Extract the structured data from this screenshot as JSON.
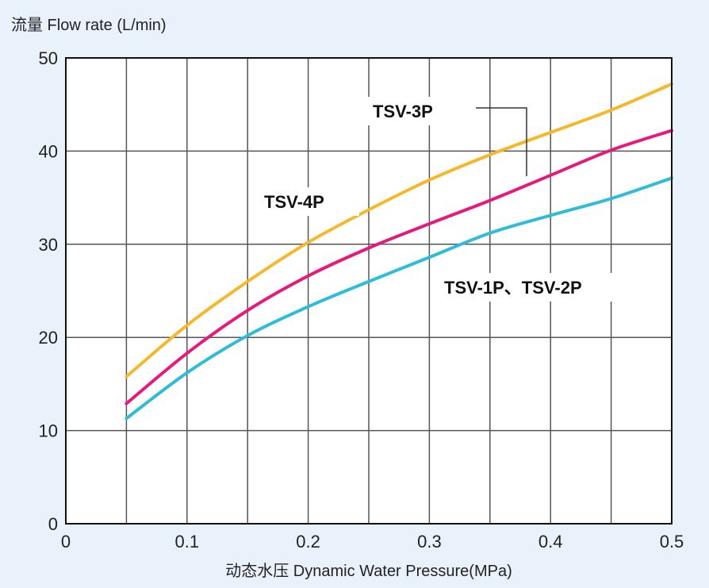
{
  "chart_data": {
    "type": "line",
    "ylabel": "流量 Flow rate (L/min)",
    "xlabel": "动态水压 Dynamic Water Pressure(MPa)",
    "xlim": [
      0,
      0.5
    ],
    "ylim": [
      0,
      50
    ],
    "x_ticks": [
      "0",
      "0.1",
      "0.2",
      "0.3",
      "0.4",
      "0.5"
    ],
    "y_ticks": [
      "0",
      "10",
      "20",
      "30",
      "40",
      "50"
    ],
    "x_ticks_values": [
      0,
      0.1,
      0.2,
      0.3,
      0.4,
      0.5
    ],
    "y_ticks_values": [
      0,
      10,
      20,
      30,
      40,
      50
    ],
    "grid": true,
    "grid_x_values": [
      0.05,
      0.1,
      0.15,
      0.2,
      0.25,
      0.3,
      0.35,
      0.4,
      0.45
    ],
    "grid_y_values": [
      10,
      20,
      30,
      40
    ],
    "series": [
      {
        "name": "TSV-3P",
        "color": "#f5b82a",
        "x": [
          0.05,
          0.1,
          0.15,
          0.2,
          0.25,
          0.3,
          0.35,
          0.4,
          0.45,
          0.5
        ],
        "y": [
          15.8,
          21.3,
          26.0,
          30.2,
          33.7,
          36.9,
          39.6,
          42.0,
          44.4,
          47.2
        ]
      },
      {
        "name": "TSV-4P",
        "color": "#e5197e",
        "x": [
          0.05,
          0.1,
          0.15,
          0.2,
          0.25,
          0.3,
          0.35,
          0.4,
          0.45,
          0.5
        ],
        "y": [
          12.9,
          18.3,
          22.9,
          26.6,
          29.6,
          32.2,
          34.7,
          37.4,
          40.1,
          42.2
        ]
      },
      {
        "name": "TSV-1P、TSV-2P",
        "color": "#2fbcd9",
        "x": [
          0.05,
          0.1,
          0.15,
          0.2,
          0.25,
          0.3,
          0.35,
          0.4,
          0.45,
          0.5
        ],
        "y": [
          11.3,
          16.2,
          20.2,
          23.3,
          26.0,
          28.6,
          31.2,
          33.1,
          34.9,
          37.1
        ]
      }
    ],
    "annotations": [
      {
        "text": "TSV-3P",
        "target": 0
      },
      {
        "text": "TSV-4P",
        "target": 1
      },
      {
        "text": "TSV-1P、TSV-2P",
        "target": 2
      }
    ]
  }
}
